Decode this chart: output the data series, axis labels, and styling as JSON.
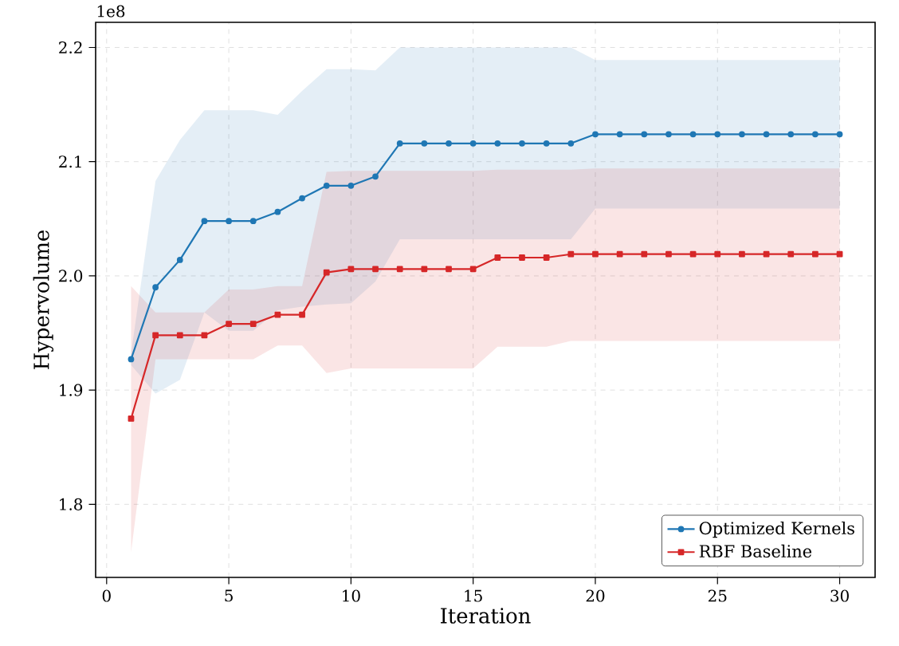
{
  "chart_data": {
    "type": "line",
    "xlabel": "Iteration",
    "ylabel": "Hypervolume",
    "annotations": [
      "1e8"
    ],
    "x": [
      1,
      2,
      3,
      4,
      5,
      6,
      7,
      8,
      9,
      10,
      11,
      12,
      13,
      14,
      15,
      16,
      17,
      18,
      19,
      20,
      21,
      22,
      23,
      24,
      25,
      26,
      27,
      28,
      29,
      30
    ],
    "series": [
      {
        "name": "Optimized Kernels",
        "color": "#1f77b4",
        "marker": "circle",
        "values": [
          1.927,
          1.99,
          2.014,
          2.048,
          2.048,
          2.048,
          2.056,
          2.068,
          2.079,
          2.079,
          2.087,
          2.116,
          2.116,
          2.116,
          2.116,
          2.116,
          2.116,
          2.116,
          2.116,
          2.124,
          2.124,
          2.124,
          2.124,
          2.124,
          2.124,
          2.124,
          2.124,
          2.124,
          2.124,
          2.124
        ],
        "upper": [
          1.932,
          2.083,
          2.119,
          2.145,
          2.145,
          2.145,
          2.141,
          2.162,
          2.181,
          2.181,
          2.18,
          2.2,
          2.2,
          2.2,
          2.2,
          2.2,
          2.2,
          2.2,
          2.2,
          2.189,
          2.189,
          2.189,
          2.189,
          2.189,
          2.189,
          2.189,
          2.189,
          2.189,
          2.189,
          2.189
        ],
        "lower": [
          1.922,
          1.897,
          1.909,
          1.968,
          1.952,
          1.952,
          1.97,
          1.973,
          1.975,
          1.976,
          1.995,
          2.032,
          2.032,
          2.032,
          2.032,
          2.032,
          2.032,
          2.032,
          2.032,
          2.059,
          2.059,
          2.059,
          2.059,
          2.059,
          2.059,
          2.059,
          2.059,
          2.059,
          2.059,
          2.059
        ]
      },
      {
        "name": "RBF Baseline",
        "color": "#d62728",
        "marker": "square",
        "values": [
          1.875,
          1.948,
          1.948,
          1.948,
          1.958,
          1.958,
          1.966,
          1.966,
          2.003,
          2.006,
          2.006,
          2.006,
          2.006,
          2.006,
          2.006,
          2.016,
          2.016,
          2.016,
          2.019,
          2.019,
          2.019,
          2.019,
          2.019,
          2.019,
          2.019,
          2.019,
          2.019,
          2.019,
          2.019,
          2.019
        ],
        "upper": [
          1.991,
          1.968,
          1.968,
          1.968,
          1.988,
          1.988,
          1.991,
          1.991,
          2.091,
          2.092,
          2.092,
          2.092,
          2.092,
          2.092,
          2.092,
          2.093,
          2.093,
          2.093,
          2.093,
          2.094,
          2.094,
          2.094,
          2.094,
          2.094,
          2.094,
          2.094,
          2.094,
          2.094,
          2.094,
          2.094
        ],
        "lower": [
          1.758,
          1.927,
          1.927,
          1.927,
          1.927,
          1.927,
          1.939,
          1.939,
          1.915,
          1.919,
          1.919,
          1.919,
          1.919,
          1.919,
          1.919,
          1.938,
          1.938,
          1.938,
          1.943,
          1.943,
          1.943,
          1.943,
          1.943,
          1.943,
          1.943,
          1.943,
          1.943,
          1.943,
          1.943,
          1.943
        ]
      }
    ],
    "xlim": [
      -0.45,
      31.45
    ],
    "ylim": [
      1.736,
      2.222
    ],
    "xticks": [
      0,
      5,
      10,
      15,
      20,
      25,
      30
    ],
    "yticks": [
      1.8,
      1.9,
      {
        "value": 2,
        "label": "2.0"
      },
      2.1,
      2.2
    ],
    "grid": true,
    "legend": "bottom right",
    "line_style": "solid"
  }
}
